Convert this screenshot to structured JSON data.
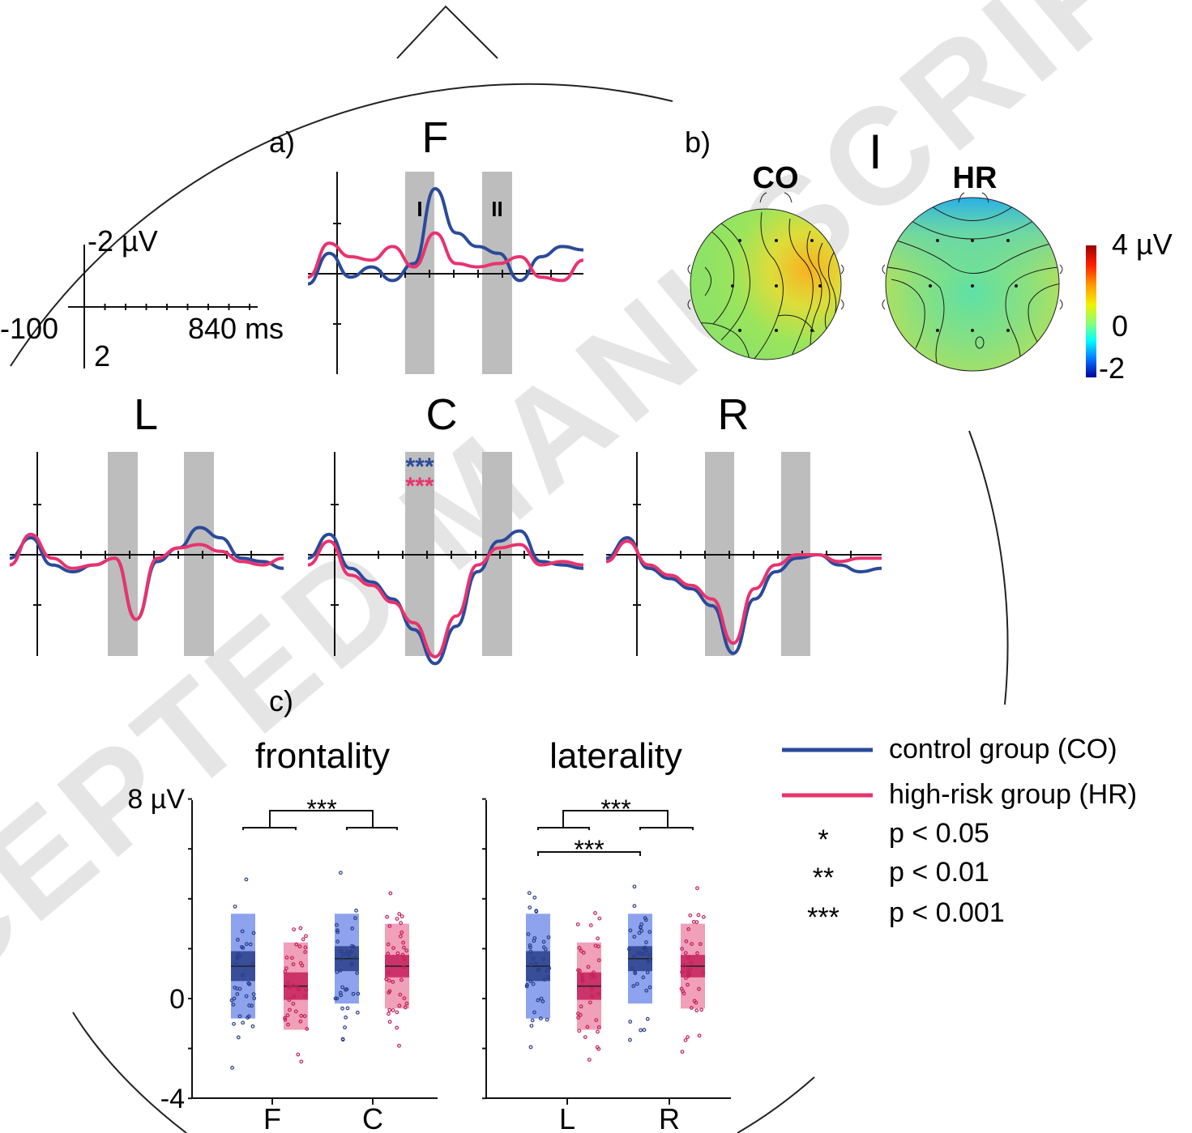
{
  "panel_labels": {
    "a": "a)",
    "b": "b)",
    "c": "c)"
  },
  "scale_bar": {
    "top": "-2 µV",
    "bottom": "2",
    "left": "-100",
    "right": "840 ms"
  },
  "erp_plots": [
    {
      "label": "F",
      "window_labels": [
        "I",
        "II"
      ],
      "stars_co": "",
      "stars_hr": ""
    },
    {
      "label": "L",
      "window_labels": [
        "",
        ""
      ],
      "stars_co": "",
      "stars_hr": ""
    },
    {
      "label": "C",
      "window_labels": [
        "",
        ""
      ],
      "stars_co": "***",
      "stars_hr": "***"
    },
    {
      "label": "R",
      "window_labels": [
        "",
        ""
      ],
      "stars_co": "",
      "stars_hr": ""
    }
  ],
  "topomap": {
    "window_label": "I",
    "titles": [
      "CO",
      "HR"
    ],
    "colorbar_ticks": [
      "4 µV",
      "0",
      "-2"
    ]
  },
  "box_plots": {
    "frontality": {
      "title": "frontality",
      "categories": [
        "F",
        "C"
      ],
      "sig": [
        "***"
      ]
    },
    "laterality": {
      "title": "laterality",
      "categories": [
        "L",
        "R"
      ],
      "sig": [
        "***",
        "***"
      ]
    },
    "y_ticks": [
      "8 µV",
      "0",
      "-4"
    ]
  },
  "legend": {
    "co": "control group (CO)",
    "hr": "high-risk group (HR)",
    "sig": [
      {
        "stars": "*",
        "text": "p < 0.05"
      },
      {
        "stars": "**",
        "text": "p < 0.01"
      },
      {
        "stars": "***",
        "text": "p < 0.001"
      }
    ]
  },
  "watermark": "ACCEPTED MANUSCRIPT",
  "colors": {
    "co": "#2a4a9a",
    "hr": "#e8336e",
    "window": "#bdbdbd"
  },
  "chart_data": [
    {
      "type": "line",
      "title": "F",
      "series": [
        {
          "name": "control group (CO)",
          "values": [
            0.3,
            -0.6,
            0.1,
            -0.2,
            0.2,
            -0.3,
            -2.5,
            -1.2,
            -0.8,
            -0.6,
            0.2,
            -0.5,
            -0.8,
            -0.7
          ]
        },
        {
          "name": "high-risk group (HR)",
          "values": [
            0.1,
            -0.9,
            -0.5,
            -0.4,
            -0.8,
            -0.2,
            -1.2,
            -0.3,
            -0.2,
            -0.3,
            -0.5,
            0.1,
            0.2,
            -0.4
          ]
        }
      ]
    },
    {
      "type": "line",
      "title": "L",
      "series": [
        {
          "name": "control group (CO)",
          "values": [
            0.1,
            -0.5,
            0.3,
            0.5,
            0.3,
            0.1,
            1.9,
            0.2,
            -0.2,
            -0.8,
            -0.5,
            0.1,
            0.2,
            0.4
          ]
        },
        {
          "name": "high-risk group (HR)",
          "values": [
            0.3,
            -0.6,
            0.1,
            0.4,
            0.3,
            0.1,
            1.9,
            0.1,
            -0.2,
            -0.3,
            -0.1,
            0.2,
            0.3,
            0.1
          ]
        }
      ]
    },
    {
      "type": "line",
      "title": "C",
      "series": [
        {
          "name": "control group (CO)",
          "values": [
            0.1,
            -0.6,
            0.4,
            0.8,
            1.3,
            2.2,
            3.2,
            2.1,
            0.5,
            -0.4,
            -0.7,
            0.2,
            0.3,
            0.4
          ]
        },
        {
          "name": "high-risk group (HR)",
          "values": [
            0.3,
            -0.4,
            0.6,
            0.9,
            1.4,
            2.0,
            3.0,
            1.8,
            0.3,
            -0.2,
            -0.3,
            0.3,
            0.2,
            0.3
          ]
        }
      ]
    },
    {
      "type": "line",
      "title": "R",
      "series": [
        {
          "name": "control group (CO)",
          "values": [
            0.1,
            -0.5,
            0.4,
            0.7,
            1.0,
            1.5,
            2.9,
            1.3,
            0.5,
            0.1,
            0.0,
            0.3,
            0.5,
            0.4
          ]
        },
        {
          "name": "high-risk group (HR)",
          "values": [
            0.2,
            -0.4,
            0.3,
            0.6,
            0.9,
            1.3,
            2.6,
            1.0,
            0.3,
            0.0,
            0.0,
            0.2,
            0.1,
            0.1
          ]
        }
      ]
    },
    {
      "type": "bar",
      "title": "frontality",
      "categories": [
        "F",
        "C"
      ],
      "ylim": [
        -4,
        8
      ],
      "series": [
        {
          "name": "control group (CO)",
          "values": [
            1.3,
            1.6
          ]
        },
        {
          "name": "high-risk group (HR)",
          "values": [
            0.5,
            1.3
          ]
        }
      ]
    },
    {
      "type": "bar",
      "title": "laterality",
      "categories": [
        "L",
        "R"
      ],
      "ylim": [
        -4,
        8
      ],
      "series": [
        {
          "name": "control group (CO)",
          "values": [
            1.3,
            1.6
          ]
        },
        {
          "name": "high-risk group (HR)",
          "values": [
            0.5,
            1.3
          ]
        }
      ]
    }
  ]
}
